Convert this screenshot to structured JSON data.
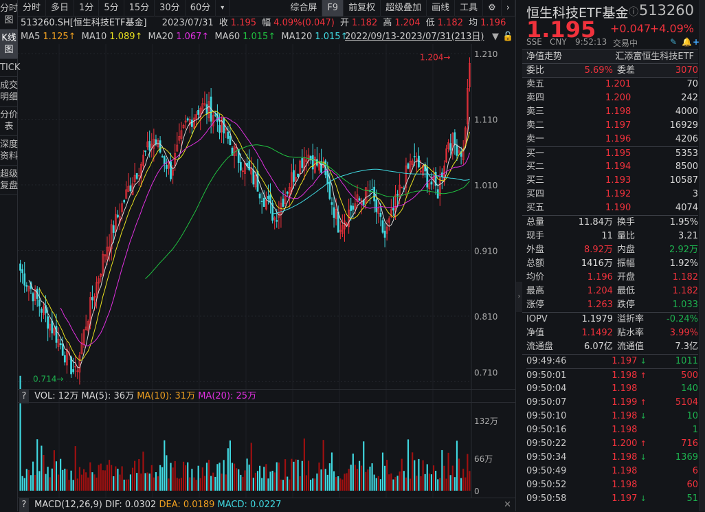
{
  "sidebar": {
    "items": [
      "分时图",
      "K线图",
      "TICK",
      "成交明细",
      "分价表",
      "深度资料",
      "超级复盘"
    ],
    "active": 1
  },
  "toolbar": {
    "periods": [
      "分时",
      "多日",
      "1分",
      "5分",
      "15分",
      "30分",
      "60分"
    ],
    "more": "▾",
    "right": [
      "综合屏",
      "F9",
      "前复权",
      "超级叠加",
      "画线",
      "工具"
    ],
    "gear": "⚙",
    "next": "›"
  },
  "info": {
    "symbol": "513260.SH[恒生科技ETF基金]",
    "date": "2023/07/31",
    "close_label": "收",
    "close": "1.195",
    "chg_label": "幅",
    "chg": "4.09%(0.047)",
    "open_label": "开",
    "open": "1.182",
    "high_label": "高",
    "high": "1.204",
    "low_label": "低",
    "low": "1.182",
    "avg_label": "均",
    "avg": "1.196"
  },
  "ma": {
    "ma5": "MA5",
    "ma5_v": "1.125↑",
    "ma10": "MA10",
    "ma10_v": "1.089↑",
    "ma20": "MA20",
    "ma20_v": "1.067↑",
    "ma60": "MA60",
    "ma60_v": "1.015↑",
    "ma120": "MA120",
    "ma120_v": "1.015↑",
    "range": "2022/09/13-2023/07/31(213日)"
  },
  "chart_labels": {
    "yticks": [
      "1.210",
      "1.110",
      "1.010",
      "0.910",
      "0.810",
      "0.710"
    ],
    "max_label": "1.204→",
    "min_label": "0.714→",
    "vol_ticks": [
      "132万",
      "66万",
      "0"
    ]
  },
  "vol": {
    "q": "?",
    "vol": "VOL: 12万",
    "ma5": "MA(5): 36万",
    "ma10": "MA(10): 31万",
    "ma20": "MA(20): 25万"
  },
  "macd": {
    "q": "?",
    "name": "MACD(12,26,9)",
    "dif": "DIF: 0.0302",
    "dea": "DEA: 0.0189",
    "macd": "MACD: 0.0227",
    "close": "✕"
  },
  "chart_data": {
    "type": "candlestick",
    "ylim": [
      0.69,
      1.22
    ],
    "count": 213,
    "waypoints": [
      [
        0,
        0.88
      ],
      [
        7,
        0.84
      ],
      [
        17,
        0.78
      ],
      [
        26,
        0.72
      ],
      [
        31,
        0.8
      ],
      [
        41,
        0.92
      ],
      [
        53,
        1.02
      ],
      [
        63,
        1.08
      ],
      [
        71,
        1.03
      ],
      [
        78,
        1.1
      ],
      [
        85,
        1.13
      ],
      [
        91,
        1.12
      ],
      [
        101,
        1.06
      ],
      [
        112,
        1.01
      ],
      [
        120,
        0.96
      ],
      [
        128,
        1.02
      ],
      [
        135,
        1.06
      ],
      [
        143,
        1.03
      ],
      [
        150,
        0.95
      ],
      [
        158,
        0.98
      ],
      [
        165,
        1.0
      ],
      [
        172,
        0.93
      ],
      [
        179,
        1.0
      ],
      [
        185,
        1.05
      ],
      [
        192,
        1.02
      ],
      [
        197,
        1.0
      ],
      [
        202,
        1.08
      ],
      [
        209,
        1.06
      ],
      [
        212,
        1.195
      ]
    ],
    "max": 1.204,
    "min": 0.714,
    "colors": {
      "up": "#f0323c",
      "down": "#40d8e0",
      "ma5": "#d8d8d8",
      "ma10": "#e8e020",
      "ma20": "#e030e0",
      "ma60": "#20c040",
      "ma120": "#40d8e0"
    }
  },
  "quote": {
    "name": "恒生科技ETF基金",
    "code": "513260",
    "price": "1.195",
    "change": "+0.047",
    "pct": "+4.09%",
    "exchange": "SSE",
    "currency": "CNY",
    "time": "9:52:13",
    "status": "交易中",
    "nav_trend": "净值走势",
    "fund_name": "汇添富恒生科技ETF",
    "wb_label": "委比",
    "wb": "5.69%",
    "wc_label": "委差",
    "wc": "3070"
  },
  "orderbook": [
    {
      "label": "卖五",
      "price": "1.201",
      "vol": "70"
    },
    {
      "label": "卖四",
      "price": "1.200",
      "vol": "242"
    },
    {
      "label": "卖三",
      "price": "1.198",
      "vol": "4000"
    },
    {
      "label": "卖二",
      "price": "1.197",
      "vol": "16929"
    },
    {
      "label": "卖一",
      "price": "1.196",
      "vol": "4206"
    },
    {
      "label": "买一",
      "price": "1.195",
      "vol": "5353"
    },
    {
      "label": "买二",
      "price": "1.194",
      "vol": "8500"
    },
    {
      "label": "买三",
      "price": "1.193",
      "vol": "10587"
    },
    {
      "label": "买四",
      "price": "1.192",
      "vol": "3"
    },
    {
      "label": "买五",
      "price": "1.190",
      "vol": "4074"
    }
  ],
  "stats": [
    [
      "总量",
      "11.84万",
      "w",
      "换手",
      "1.95%",
      "w"
    ],
    [
      "现手",
      "11",
      "w",
      "量比",
      "3.21",
      "w"
    ],
    [
      "外盘",
      "8.92万",
      "r",
      "内盘",
      "2.92万",
      "g"
    ],
    [
      "总额",
      "1416万",
      "w",
      "振幅",
      "1.92%",
      "w"
    ],
    [
      "均价",
      "1.196",
      "r",
      "开盘",
      "1.182",
      "r"
    ],
    [
      "最高",
      "1.204",
      "r",
      "最低",
      "1.182",
      "r"
    ],
    [
      "涨停",
      "1.263",
      "r",
      "跌停",
      "1.033",
      "g"
    ]
  ],
  "stats2": [
    [
      "IOPV",
      "1.1979",
      "w",
      "溢折率",
      "-0.24%",
      "g"
    ],
    [
      "净值",
      "1.1492",
      "r",
      "贴水率",
      "3.99%",
      "r"
    ],
    [
      "流通盘",
      "6.07亿",
      "w",
      "流通值",
      "7.3亿",
      "w"
    ]
  ],
  "ticks": [
    [
      "09:49:46",
      "1.197",
      "↓",
      "1011",
      "g"
    ],
    [
      "09:50:01",
      "1.198",
      "↑",
      "500",
      "r"
    ],
    [
      "09:50:04",
      "1.198",
      "",
      "140",
      "g"
    ],
    [
      "09:50:07",
      "1.199",
      "↑",
      "5104",
      "r"
    ],
    [
      "09:50:10",
      "1.198",
      "↓",
      "10",
      "g"
    ],
    [
      "09:50:16",
      "1.198",
      "",
      "1",
      "g"
    ],
    [
      "09:50:22",
      "1.200",
      "↑",
      "716",
      "r"
    ],
    [
      "09:50:34",
      "1.198",
      "↓",
      "1369",
      "g"
    ],
    [
      "09:50:49",
      "1.198",
      "",
      "6",
      "r"
    ],
    [
      "09:50:52",
      "1.198",
      "",
      "60",
      "r"
    ],
    [
      "09:50:58",
      "1.197",
      "↓",
      "51",
      "g"
    ]
  ]
}
